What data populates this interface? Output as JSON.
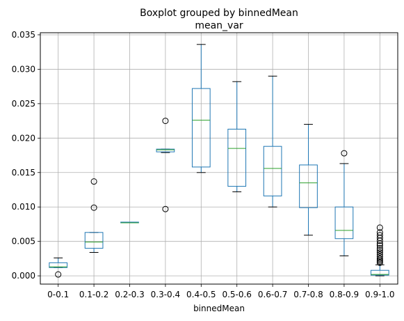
{
  "figure": {
    "suptitle": "Boxplot grouped by binnedMean"
  },
  "chart_data": {
    "type": "box",
    "title": "mean_var",
    "xlabel": "binnedMean",
    "ylabel": "",
    "ylim": [
      -0.0012,
      0.0353
    ],
    "yticks": [
      "0.000",
      "0.005",
      "0.010",
      "0.015",
      "0.020",
      "0.025",
      "0.030",
      "0.035"
    ],
    "ytick_values": [
      0.0,
      0.005,
      0.01,
      0.015,
      0.02,
      0.025,
      0.03,
      0.035
    ],
    "grid": true,
    "colors": {
      "box": "#1f77b4",
      "median": "#2ca02c",
      "whisker": "#000000",
      "flier": "#000000",
      "grid": "#b0b0b0"
    },
    "categories": [
      "0-0.1",
      "0.1-0.2",
      "0.2-0.3",
      "0.3-0.4",
      "0.4-0.5",
      "0.5-0.6",
      "0.6-0.7",
      "0.7-0.8",
      "0.8-0.9",
      "0.9-1.0"
    ],
    "boxes": [
      {
        "whislo": 0.0012,
        "q1": 0.0012,
        "med": 0.0013,
        "q3": 0.0019,
        "whishi": 0.0026,
        "fliers": [
          0.0002
        ]
      },
      {
        "whislo": 0.0034,
        "q1": 0.004,
        "med": 0.0049,
        "q3": 0.0063,
        "whishi": 0.0063,
        "fliers": [
          0.0099,
          0.0137
        ]
      },
      {
        "whislo": 0.0077,
        "q1": 0.0077,
        "med": 0.0077,
        "q3": 0.0078,
        "whishi": 0.0078,
        "fliers": []
      },
      {
        "whislo": 0.0179,
        "q1": 0.018,
        "med": 0.0183,
        "q3": 0.0184,
        "whishi": 0.0184,
        "fliers": [
          0.0225,
          0.0097
        ]
      },
      {
        "whislo": 0.015,
        "q1": 0.0158,
        "med": 0.0226,
        "q3": 0.0272,
        "whishi": 0.0336,
        "fliers": []
      },
      {
        "whislo": 0.0122,
        "q1": 0.013,
        "med": 0.0185,
        "q3": 0.0213,
        "whishi": 0.0282,
        "fliers": []
      },
      {
        "whislo": 0.01,
        "q1": 0.0116,
        "med": 0.0156,
        "q3": 0.0188,
        "whishi": 0.029,
        "fliers": []
      },
      {
        "whislo": 0.0059,
        "q1": 0.0099,
        "med": 0.0135,
        "q3": 0.0161,
        "whishi": 0.022,
        "fliers": []
      },
      {
        "whislo": 0.0029,
        "q1": 0.0054,
        "med": 0.0066,
        "q3": 0.01,
        "whishi": 0.0163,
        "fliers": [
          0.0178
        ]
      },
      {
        "whislo": 0.0,
        "q1": 0.0001,
        "med": 0.0002,
        "q3": 0.0008,
        "whishi": 0.0016,
        "fliers": [
          0.0019,
          0.0021,
          0.0023,
          0.0025,
          0.0028,
          0.0031,
          0.0034,
          0.0037,
          0.004,
          0.0044,
          0.0047,
          0.0051,
          0.0055,
          0.0059,
          0.0063,
          0.007
        ]
      }
    ]
  }
}
